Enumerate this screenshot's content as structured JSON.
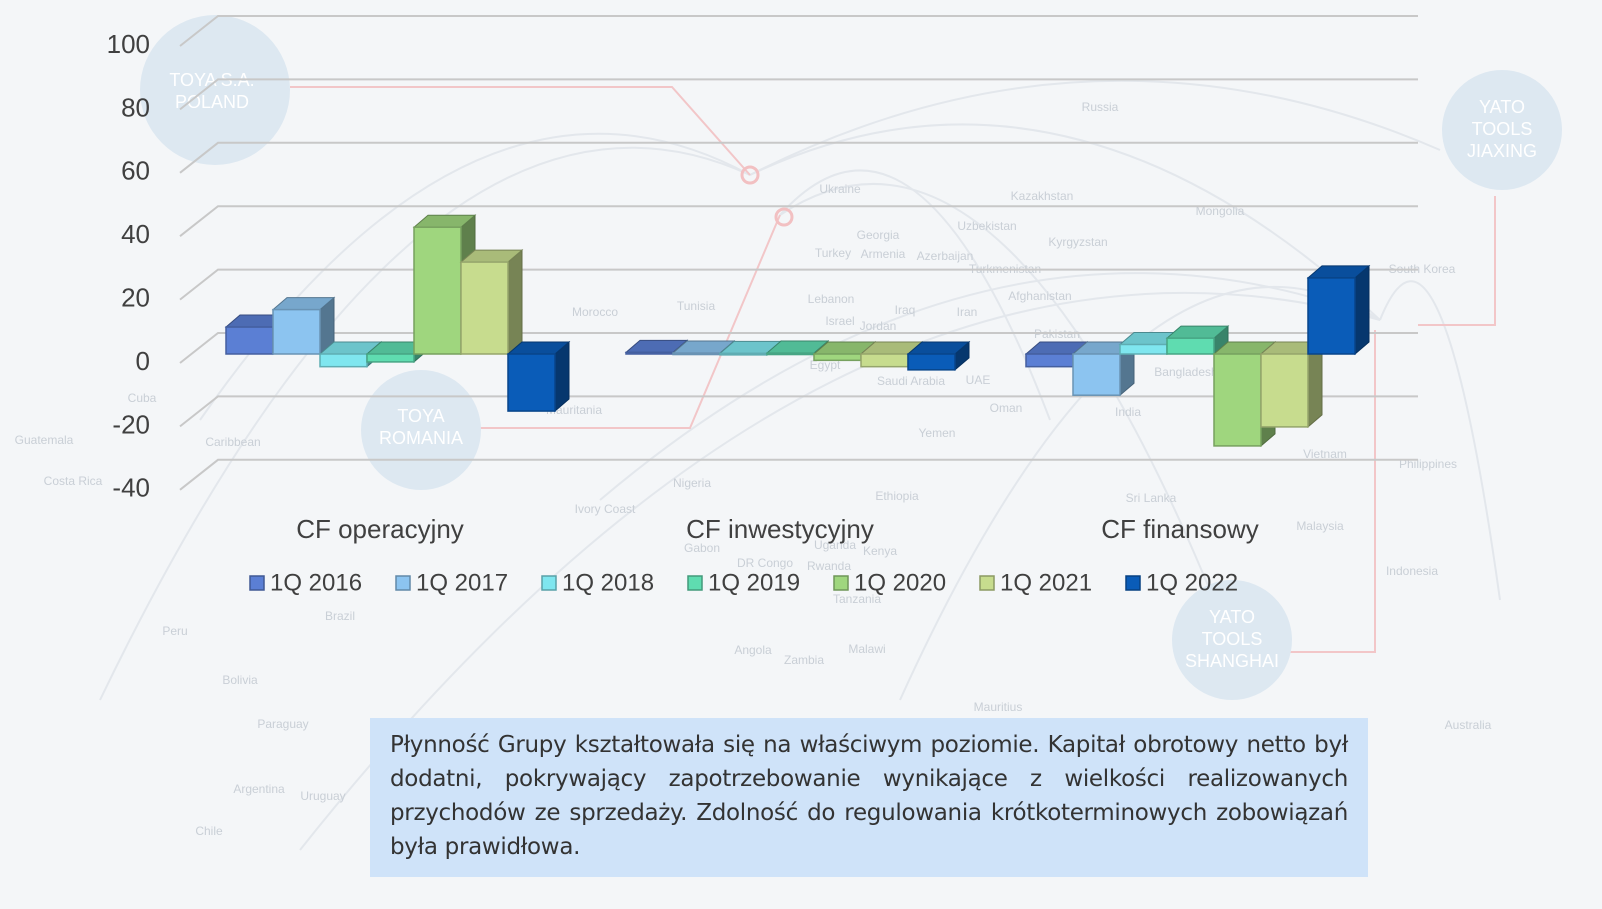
{
  "chart_data": {
    "type": "bar3d",
    "categories": [
      "CF operacyjny",
      "CF inwestycyjny",
      "CF finansowy"
    ],
    "series": [
      {
        "name": "1Q 2016",
        "color": "#5b7fd4",
        "values": [
          8.5,
          0.5,
          -4
        ]
      },
      {
        "name": "1Q 2017",
        "color": "#8cc4f0",
        "values": [
          14,
          0.3,
          -13
        ]
      },
      {
        "name": "1Q 2018",
        "color": "#7fe6ef",
        "values": [
          -4,
          0.2,
          3
        ]
      },
      {
        "name": "1Q 2019",
        "color": "#5fdcb0",
        "values": [
          -2.5,
          0.3,
          5
        ]
      },
      {
        "name": "1Q 2020",
        "color": "#9fd67e",
        "values": [
          40,
          -2,
          -29
        ]
      },
      {
        "name": "1Q 2021",
        "color": "#c7dc8e",
        "values": [
          29,
          -4,
          -23
        ]
      },
      {
        "name": "1Q 2022",
        "color": "#0a5cb8",
        "values": [
          -18,
          -5,
          24
        ]
      }
    ],
    "ylim": [
      -40,
      100
    ],
    "yticks": [
      -40,
      -20,
      0,
      20,
      40,
      60,
      80,
      100
    ],
    "grid": true,
    "legend": "bottom"
  },
  "map_labels": [
    "TOYA S.A. POLAND",
    "YATO TOOLS JIAXING",
    "TOYA ROMANIA",
    "YATO TOOLS SHANGHAI",
    "Russia",
    "Ukraine",
    "Kazakhstan",
    "Mongolia",
    "Uzbekistan",
    "Georgia",
    "Kyrgyzstan",
    "Turkey",
    "Armenia",
    "Azerbaijan",
    "Turkmenistan",
    "South Korea",
    "Morocco",
    "Tunisia",
    "Lebanon",
    "Israel",
    "Jordan",
    "Iraq",
    "Iran",
    "Afghanistan",
    "Pakistan",
    "Egypt",
    "Saudi Arabia",
    "UAE",
    "Oman",
    "India",
    "Bangladesh",
    "Cuba",
    "Guatemala",
    "Caribbean",
    "Costa Rica",
    "Mauritania",
    "Yemen",
    "Vietnam",
    "Philippines",
    "Nigeria",
    "Ethiopia",
    "Sri Lanka",
    "Ivory Coast",
    "Gabon",
    "DR Congo",
    "Uganda",
    "Kenya",
    "Rwanda",
    "Tanzania",
    "Malaysia",
    "Indonesia",
    "Brazil",
    "Peru",
    "Angola",
    "Zambia",
    "Malawi",
    "Bolivia",
    "Paraguay",
    "Mauritius",
    "Australia",
    "Argentina",
    "Uruguay",
    "Chile"
  ],
  "text_box": "Płynność Grupy kształtowała się na właściwym poziomie. Kapitał obrotowy netto był dodatni, pokrywający zapotrzebowanie wynikające z wielkości realizowanych przychodów ze sprzedaży. Zdolność do regulowania krótkoterminowych zobowiązań była prawidłowa."
}
